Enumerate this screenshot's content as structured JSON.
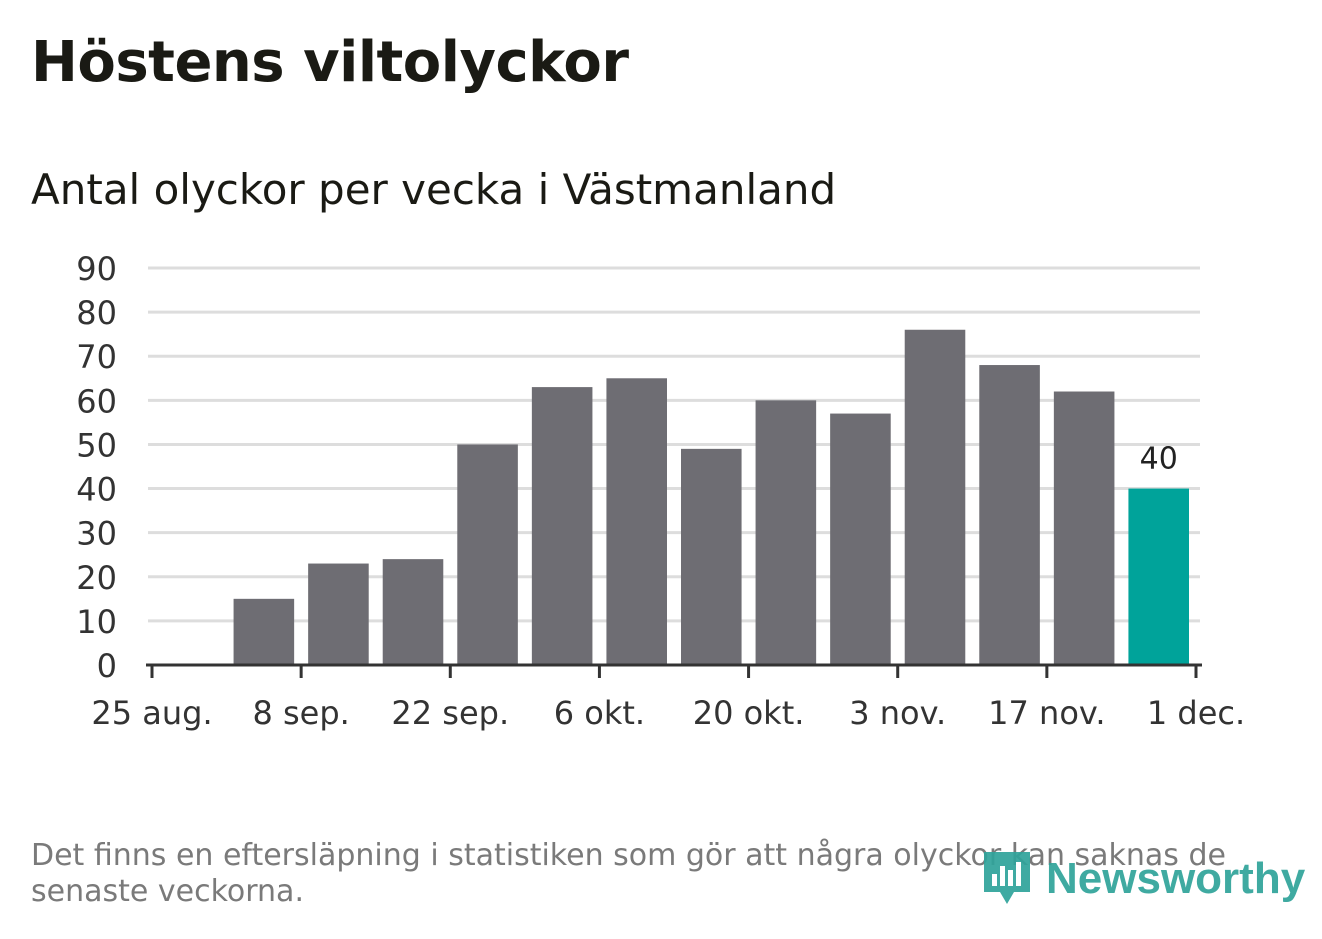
{
  "header": {
    "title": "Höstens viltolyckor",
    "subtitle": "Antal olyckor per vecka i Västmanland"
  },
  "chart_data": {
    "type": "bar",
    "title": "Höstens viltolyckor",
    "subtitle": "Antal olyckor per vecka i Västmanland",
    "xlabel": "",
    "ylabel": "",
    "ylim": [
      0,
      90
    ],
    "yticks": [
      0,
      10,
      20,
      30,
      40,
      50,
      60,
      70,
      80,
      90
    ],
    "grid": true,
    "week_starts_day_offsets": [
      7,
      14,
      21,
      28,
      35,
      42,
      49,
      56,
      63,
      70,
      77,
      84,
      91,
      98
    ],
    "values": [
      15,
      23,
      24,
      50,
      63,
      65,
      49,
      60,
      57,
      76,
      68,
      62,
      40
    ],
    "highlight_index": 12,
    "highlight_label": "40",
    "xticks": [
      {
        "label": "25 aug.",
        "day_offset": 0
      },
      {
        "label": "8 sep.",
        "day_offset": 14
      },
      {
        "label": "22 sep.",
        "day_offset": 28
      },
      {
        "label": "6 okt.",
        "day_offset": 42
      },
      {
        "label": "20 okt.",
        "day_offset": 56
      },
      {
        "label": "3 nov.",
        "day_offset": 70
      },
      {
        "label": "17 nov.",
        "day_offset": 84
      },
      {
        "label": "1 dec.",
        "day_offset": 98
      }
    ],
    "xlim_days": [
      0,
      98
    ],
    "colors": {
      "bar": "#6e6d73",
      "highlight": "#00a39a",
      "grid": "#dddddd",
      "axis": "#333333",
      "tick_text": "#333333"
    }
  },
  "footer": {
    "note": "Det finns en eftersläpning i statistiken som gör att några olyckor kan saknas de senaste veckorna.",
    "brand": "Newsworthy",
    "brand_icon": "newsworthy-logo-icon"
  }
}
